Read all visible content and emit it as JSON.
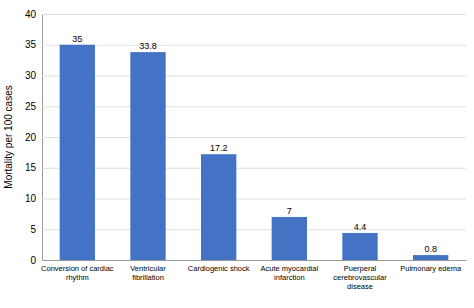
{
  "chart_data": {
    "type": "bar",
    "ylabel": "Mortality per 100 cases",
    "categories": [
      "Conversion of cardiac\nrhythm",
      "Ventricular\nfibrillation",
      "Cardiogenic shock",
      "Acute myocardial\ninfarction",
      "Puerperal\ncerebrovascular\ndisease",
      "Pulmonary edema"
    ],
    "values": [
      35,
      33.8,
      17.2,
      7,
      4.4,
      0.8
    ],
    "color": "#4472c4",
    "ylim": [
      0,
      40
    ],
    "yticks": [
      0,
      5,
      10,
      15,
      20,
      25,
      30,
      35,
      40
    ],
    "grid": true,
    "data_labels": true
  }
}
